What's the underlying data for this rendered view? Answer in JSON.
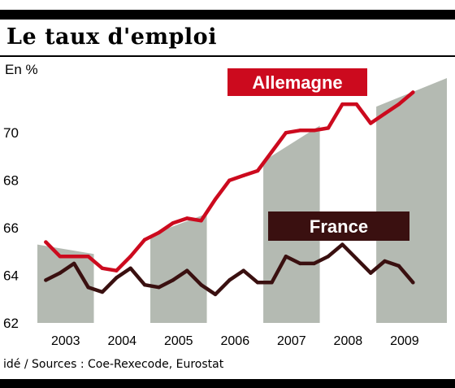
{
  "header": {
    "title": "Le taux d'emploi",
    "unit": "En %"
  },
  "footer": {
    "source": "idé / Sources : Coe-Rexecode, Eurostat"
  },
  "colors": {
    "germany": "#cc0a1e",
    "france": "#3a1010",
    "bands": "#b4bab2",
    "background": "#ffffff"
  },
  "chart_data": {
    "type": "line",
    "xlabel": "",
    "ylabel": "En %",
    "xlim": [
      2002.85,
      2010.1
    ],
    "ylim": [
      62,
      72.3
    ],
    "x_ticks": [
      "2003",
      "2004",
      "2005",
      "2006",
      "2007",
      "2008",
      "2009"
    ],
    "y_ticks": [
      "62",
      "64",
      "66",
      "68",
      "70"
    ],
    "grid": false,
    "shaded_bands": [
      {
        "x_start": 2002.85,
        "x_end": 2003.85,
        "y_start": 65.3,
        "y_end": 64.9
      },
      {
        "x_start": 2004.85,
        "x_end": 2005.85,
        "y_start": 65.7,
        "y_end": 66.6
      },
      {
        "x_start": 2006.85,
        "x_end": 2007.85,
        "y_start": 68.8,
        "y_end": 70.3
      },
      {
        "x_start": 2008.85,
        "x_end": 2010.1,
        "y_start": 71.1,
        "y_end": 72.3
      }
    ],
    "series": [
      {
        "name": "Allemagne",
        "color": "#cc0a1e",
        "x": [
          2003.0,
          2003.25,
          2003.5,
          2003.75,
          2004.0,
          2004.25,
          2004.5,
          2004.75,
          2005.0,
          2005.25,
          2005.5,
          2005.75,
          2006.0,
          2006.25,
          2006.5,
          2006.75,
          2007.0,
          2007.25,
          2007.5,
          2007.75,
          2008.0,
          2008.25,
          2008.5,
          2008.75,
          2009.0,
          2009.25,
          2009.5
        ],
        "values": [
          65.4,
          64.8,
          64.8,
          64.8,
          64.3,
          64.2,
          64.8,
          65.5,
          65.8,
          66.2,
          66.4,
          66.3,
          67.2,
          68.0,
          68.2,
          68.4,
          69.2,
          70.0,
          70.1,
          70.1,
          70.2,
          71.2,
          71.2,
          70.4,
          70.8,
          71.2,
          71.7
        ]
      },
      {
        "name": "France",
        "color": "#3a1010",
        "x": [
          2003.0,
          2003.25,
          2003.5,
          2003.75,
          2004.0,
          2004.25,
          2004.5,
          2004.75,
          2005.0,
          2005.25,
          2005.5,
          2005.75,
          2006.0,
          2006.25,
          2006.5,
          2006.75,
          2007.0,
          2007.25,
          2007.5,
          2007.75,
          2008.0,
          2008.25,
          2008.5,
          2008.75,
          2009.0,
          2009.25,
          2009.5
        ],
        "values": [
          63.8,
          64.1,
          64.5,
          63.5,
          63.3,
          63.9,
          64.3,
          63.6,
          63.5,
          63.8,
          64.2,
          63.6,
          63.2,
          63.8,
          64.2,
          63.7,
          63.7,
          64.8,
          64.5,
          64.5,
          64.8,
          65.3,
          64.7,
          64.1,
          64.6,
          64.4,
          63.7
        ]
      }
    ],
    "legend": [
      {
        "label": "Allemagne",
        "series": "Allemagne",
        "placement": "top-center"
      },
      {
        "label": "France",
        "series": "France",
        "placement": "middle-right"
      }
    ]
  }
}
